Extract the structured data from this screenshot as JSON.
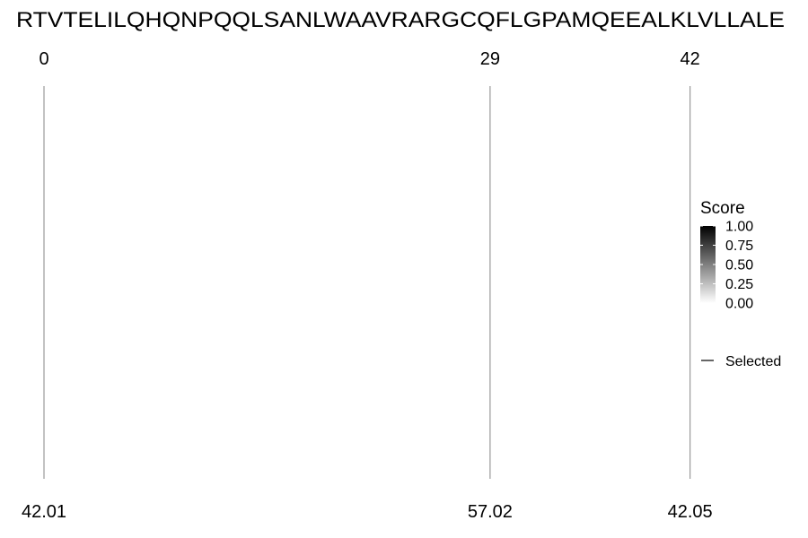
{
  "chart_data": {
    "type": "line",
    "sequence": "RTVTELILQHQNPQQLSANLWAAVRARGCQFLGPAMQEEALKLVLLALE",
    "positions": [
      0,
      29,
      42
    ],
    "position_labels": [
      "0",
      "29",
      "42"
    ],
    "scores": [
      42.01,
      57.02,
      42.05
    ],
    "score_labels": [
      "42.01",
      "57.02",
      "42.05"
    ],
    "legend": {
      "title": "Score",
      "ticks": [
        "1.00",
        "0.75",
        "0.50",
        "0.25",
        "0.00"
      ],
      "tick_values": [
        1.0,
        0.75,
        0.5,
        0.25,
        0.0
      ],
      "gradient_colors": [
        "#000000",
        "#ffffff"
      ],
      "line_key_label": "Selected",
      "placement": "right"
    },
    "line_color": "#9a9a9a"
  }
}
